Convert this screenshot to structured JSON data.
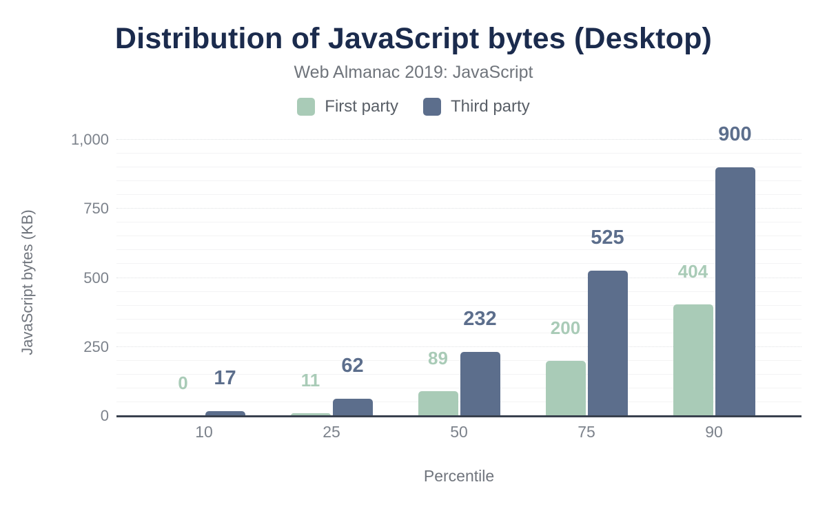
{
  "header": {
    "title": "Distribution of JavaScript bytes (Desktop)",
    "subtitle": "Web Almanac 2019: JavaScript"
  },
  "chart_data": {
    "type": "bar",
    "title": "Distribution of JavaScript bytes (Desktop)",
    "subtitle": "Web Almanac 2019: JavaScript",
    "categories": [
      "10",
      "25",
      "50",
      "75",
      "90"
    ],
    "series": [
      {
        "name": "First party",
        "color": "#a9cbb7",
        "values": [
          0,
          11,
          89,
          200,
          404
        ]
      },
      {
        "name": "Third party",
        "color": "#5c6e8c",
        "values": [
          17,
          62,
          232,
          525,
          900
        ]
      }
    ],
    "xlabel": "Percentile",
    "ylabel": "JavaScript bytes (KB)",
    "ylim": [
      0,
      1000
    ],
    "yticks": [
      0,
      250,
      500,
      750,
      1000
    ],
    "ytick_labels": [
      "0",
      "250",
      "500",
      "750",
      "1,000"
    ],
    "minor_grid_step": 50,
    "grid": true,
    "legend_position": "top",
    "value_labels_shown": true
  },
  "colors": {
    "title": "#1b2b4d",
    "subtitle_text": "#6f747b",
    "axis_text": "#7c828b",
    "axis_line": "#39414e",
    "first_party": "#a9cbb7",
    "third_party": "#5c6e8c",
    "background": "#ffffff"
  }
}
